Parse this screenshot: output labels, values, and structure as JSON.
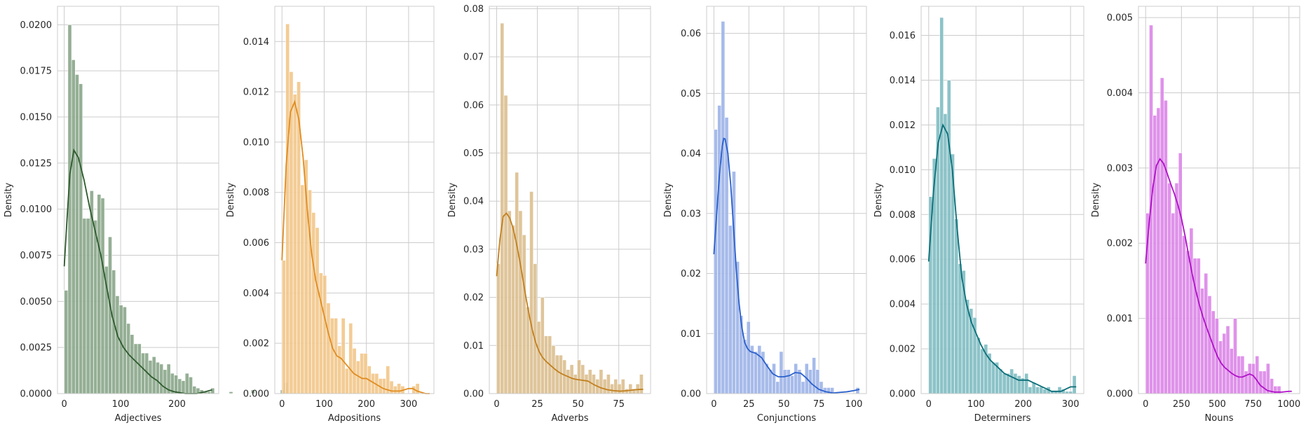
{
  "chart_data": [
    {
      "type": "histogram",
      "xlabel": "Adjectives",
      "ylabel": "Density",
      "color": "#2d5a2d",
      "fill": "#8aa68a",
      "bins": {
        "start": 0,
        "width": 6.5
      },
      "values": [
        0.0056,
        0.02,
        0.0181,
        0.0173,
        0.0168,
        0.0095,
        0.0095,
        0.011,
        0.0094,
        0.0108,
        0.0106,
        0.0069,
        0.0085,
        0.0067,
        0.0053,
        0.0048,
        0.0047,
        0.0038,
        0.0032,
        0.0027,
        0.0027,
        0.0022,
        0.0022,
        0.0018,
        0.002,
        0.0017,
        0.0016,
        0.0013,
        0.0016,
        0.0011,
        0.001,
        0.0008,
        0.0007,
        0.0011,
        0.0009,
        0.0004,
        0.0003,
        0.0002,
        0.0001,
        0.0001,
        0.0003,
        0.0,
        0.0,
        0.0,
        0.0,
        0.0001,
        0.0,
        0.0,
        0.0,
        0.0,
        0.0,
        0.0002,
        0.0,
        0.0,
        0.0,
        0.0,
        0.0,
        0.0,
        0.0,
        0.0002,
        0.0006
      ],
      "kde": [
        [
          0,
          0.0069
        ],
        [
          5,
          0.0095
        ],
        [
          10,
          0.0119
        ],
        [
          17,
          0.0132
        ],
        [
          25,
          0.0128
        ],
        [
          35,
          0.0116
        ],
        [
          45,
          0.0101
        ],
        [
          55,
          0.0088
        ],
        [
          65,
          0.0075
        ],
        [
          75,
          0.0058
        ],
        [
          85,
          0.0042
        ],
        [
          95,
          0.0031
        ],
        [
          105,
          0.0025
        ],
        [
          115,
          0.0021
        ],
        [
          125,
          0.0018
        ],
        [
          135,
          0.0015
        ],
        [
          145,
          0.0012
        ],
        [
          155,
          0.0009
        ],
        [
          165,
          0.0007
        ],
        [
          175,
          0.0004
        ],
        [
          185,
          0.0002
        ],
        [
          195,
          0.0001
        ],
        [
          215,
          0.0
        ],
        [
          235,
          0.0
        ],
        [
          250,
          0.0001
        ],
        [
          262,
          0.0002
        ]
      ],
      "xlim": [
        -12,
        274
      ],
      "ylim": [
        0,
        0.021
      ],
      "xticks": [
        0,
        100,
        200
      ],
      "yticks": [
        0.0,
        0.0025,
        0.005,
        0.0075,
        0.01,
        0.0125,
        0.015,
        0.0175,
        0.02
      ],
      "ytick_labels": [
        "0.0000",
        "0.0025",
        "0.0050",
        "0.0075",
        "0.0100",
        "0.0125",
        "0.0150",
        "0.0175",
        "0.0200"
      ],
      "grid": true
    },
    {
      "type": "histogram",
      "xlabel": "Adpositions",
      "ylabel": "Density",
      "color": "#e08c20",
      "fill": "#f2c68a",
      "bins": {
        "start": 0,
        "width": 8.8
      },
      "values": [
        0.0053,
        0.0147,
        0.0128,
        0.0119,
        0.0124,
        0.0083,
        0.0093,
        0.0081,
        0.0072,
        0.0066,
        0.0048,
        0.0047,
        0.0036,
        0.003,
        0.003,
        0.0019,
        0.003,
        0.001,
        0.0028,
        0.0018,
        0.0013,
        0.0016,
        0.0016,
        0.0011,
        0.0008,
        0.0008,
        0.0006,
        0.0006,
        0.0011,
        0.0005,
        0.0003,
        0.0004,
        0.0003,
        0.0,
        0.0,
        0.0003,
        0.0004,
        0.0,
        0.0,
        0.0
      ],
      "kde": [
        [
          0,
          0.0053
        ],
        [
          10,
          0.0091
        ],
        [
          20,
          0.0112
        ],
        [
          30,
          0.0116
        ],
        [
          40,
          0.0109
        ],
        [
          50,
          0.0094
        ],
        [
          60,
          0.0073
        ],
        [
          70,
          0.0056
        ],
        [
          80,
          0.0045
        ],
        [
          90,
          0.0038
        ],
        [
          100,
          0.0031
        ],
        [
          110,
          0.0024
        ],
        [
          120,
          0.0018
        ],
        [
          130,
          0.0015
        ],
        [
          140,
          0.0014
        ],
        [
          150,
          0.0012
        ],
        [
          160,
          0.001
        ],
        [
          170,
          0.0008
        ],
        [
          180,
          0.0007
        ],
        [
          190,
          0.0006
        ],
        [
          200,
          0.0006
        ],
        [
          210,
          0.0005
        ],
        [
          220,
          0.0004
        ],
        [
          230,
          0.0003
        ],
        [
          240,
          0.0002
        ],
        [
          260,
          0.0001
        ],
        [
          280,
          0.0001
        ],
        [
          300,
          0.0002
        ],
        [
          310,
          0.0002
        ],
        [
          320,
          0.0001
        ],
        [
          340,
          0.0
        ],
        [
          350,
          0.0
        ]
      ],
      "xlim": [
        -17,
        360
      ],
      "ylim": [
        0,
        0.0154
      ],
      "xticks": [
        0,
        100,
        200,
        300
      ],
      "yticks": [
        0.0,
        0.002,
        0.004,
        0.006,
        0.008,
        0.01,
        0.012,
        0.014
      ],
      "ytick_labels": [
        "0.000",
        "0.002",
        "0.004",
        "0.006",
        "0.008",
        "0.010",
        "0.012",
        "0.014"
      ],
      "grid": true
    },
    {
      "type": "histogram",
      "xlabel": "Adverbs",
      "ylabel": "Density",
      "color": "#c27f1e",
      "fill": "#dcbf8f",
      "bins": {
        "start": 0,
        "width": 2.25
      },
      "values": [
        0.027,
        0.077,
        0.062,
        0.038,
        0.035,
        0.046,
        0.038,
        0.033,
        0.018,
        0.042,
        0.027,
        0.015,
        0.02,
        0.012,
        0.012,
        0.01,
        0.008,
        0.008,
        0.007,
        0.005,
        0.006,
        0.004,
        0.007,
        0.006,
        0.004,
        0.005,
        0.004,
        0.003,
        0.005,
        0.003,
        0.004,
        0.002,
        0.003,
        0.002,
        0.003,
        0.001,
        0.002,
        0.001,
        0.002,
        0.004
      ],
      "kde": [
        [
          0,
          0.0244
        ],
        [
          2,
          0.032
        ],
        [
          4,
          0.0368
        ],
        [
          6,
          0.0375
        ],
        [
          8,
          0.0365
        ],
        [
          10,
          0.0345
        ],
        [
          12,
          0.0315
        ],
        [
          14,
          0.028
        ],
        [
          16,
          0.024
        ],
        [
          18,
          0.02
        ],
        [
          20,
          0.0163
        ],
        [
          22,
          0.0131
        ],
        [
          24,
          0.0106
        ],
        [
          26,
          0.0088
        ],
        [
          28,
          0.0076
        ],
        [
          30,
          0.0068
        ],
        [
          32,
          0.0062
        ],
        [
          34,
          0.0056
        ],
        [
          36,
          0.005
        ],
        [
          38,
          0.0045
        ],
        [
          40,
          0.0041
        ],
        [
          42,
          0.0038
        ],
        [
          44,
          0.0035
        ],
        [
          46,
          0.0032
        ],
        [
          48,
          0.003
        ],
        [
          50,
          0.0029
        ],
        [
          52,
          0.0028
        ],
        [
          54,
          0.0027
        ],
        [
          56,
          0.0026
        ],
        [
          58,
          0.0022
        ],
        [
          60,
          0.0018
        ],
        [
          64,
          0.0012
        ],
        [
          68,
          0.0008
        ],
        [
          72,
          0.0006
        ],
        [
          76,
          0.0005
        ],
        [
          80,
          0.0006
        ],
        [
          85,
          0.0008
        ],
        [
          90,
          0.0009
        ]
      ],
      "xlim": [
        -4.5,
        94.5
      ],
      "ylim": [
        0,
        0.0805
      ],
      "xticks": [
        0,
        25,
        50,
        75
      ],
      "yticks": [
        0.0,
        0.01,
        0.02,
        0.03,
        0.04,
        0.05,
        0.06,
        0.07,
        0.08
      ],
      "ytick_labels": [
        "0.00",
        "0.01",
        "0.02",
        "0.03",
        "0.04",
        "0.05",
        "0.06",
        "0.07",
        "0.08"
      ],
      "grid": true
    },
    {
      "type": "histogram",
      "xlabel": "Conjunctions",
      "ylabel": "Density",
      "color": "#2a60cc",
      "fill": "#9db4e8",
      "bins": {
        "start": 0,
        "width": 2.6
      },
      "values": [
        0.044,
        0.048,
        0.062,
        0.046,
        0.028,
        0.037,
        0.022,
        0.013,
        0.009,
        0.012,
        0.008,
        0.007,
        0.008,
        0.007,
        0.005,
        0.004,
        0.005,
        0.002,
        0.007,
        0.004,
        0.004,
        0.003,
        0.005,
        0.004,
        0.002,
        0.005,
        0.004,
        0.006,
        0.004,
        0.002,
        0.001,
        0.001,
        0.001,
        0.0,
        0.0,
        0.0,
        0.0,
        0.0,
        0.0,
        0.001
      ],
      "kde": [
        [
          0,
          0.0232
        ],
        [
          2,
          0.03
        ],
        [
          4,
          0.0365
        ],
        [
          6,
          0.0413
        ],
        [
          7,
          0.0425
        ],
        [
          8,
          0.0424
        ],
        [
          10,
          0.04
        ],
        [
          12,
          0.0348
        ],
        [
          14,
          0.0278
        ],
        [
          16,
          0.0206
        ],
        [
          18,
          0.015
        ],
        [
          20,
          0.011
        ],
        [
          22,
          0.0085
        ],
        [
          24,
          0.0075
        ],
        [
          26,
          0.007
        ],
        [
          30,
          0.0067
        ],
        [
          34,
          0.006
        ],
        [
          38,
          0.0046
        ],
        [
          42,
          0.0033
        ],
        [
          46,
          0.0028
        ],
        [
          50,
          0.0028
        ],
        [
          54,
          0.003
        ],
        [
          58,
          0.0035
        ],
        [
          62,
          0.0034
        ],
        [
          66,
          0.0026
        ],
        [
          70,
          0.0016
        ],
        [
          75,
          0.0007
        ],
        [
          80,
          0.0003
        ],
        [
          85,
          0.0001
        ],
        [
          90,
          0.0002
        ],
        [
          95,
          0.0003
        ],
        [
          100,
          0.0005
        ],
        [
          104,
          0.0007
        ]
      ],
      "xlim": [
        -5.2,
        109
      ],
      "ylim": [
        0,
        0.0645
      ],
      "xticks": [
        0,
        25,
        50,
        75,
        100
      ],
      "yticks": [
        0.0,
        0.01,
        0.02,
        0.03,
        0.04,
        0.05,
        0.06
      ],
      "ytick_labels": [
        "0.00",
        "0.01",
        "0.02",
        "0.03",
        "0.04",
        "0.05",
        "0.06"
      ],
      "grid": true
    },
    {
      "type": "histogram",
      "xlabel": "Determiners",
      "ylabel": "Density",
      "color": "#0a6e78",
      "fill": "#7fbcc2",
      "bins": {
        "start": 0,
        "width": 7.8
      },
      "values": [
        0.0088,
        0.0105,
        0.0128,
        0.0168,
        0.0125,
        0.014,
        0.0107,
        0.0078,
        0.0058,
        0.0055,
        0.0042,
        0.0038,
        0.0034,
        0.0025,
        0.002,
        0.0022,
        0.0018,
        0.0014,
        0.0014,
        0.0011,
        0.0009,
        0.0009,
        0.0011,
        0.0009,
        0.0008,
        0.0007,
        0.0009,
        0.0003,
        0.0005,
        0.0003,
        0.0003,
        0.0002,
        0.0003,
        0.0001,
        0.0001,
        0.0003,
        0.0002,
        0.0001,
        0.0001,
        0.0008
      ],
      "kde": [
        [
          0,
          0.0059
        ],
        [
          10,
          0.009
        ],
        [
          20,
          0.0112
        ],
        [
          30,
          0.012
        ],
        [
          40,
          0.0116
        ],
        [
          50,
          0.01
        ],
        [
          60,
          0.0074
        ],
        [
          70,
          0.0052
        ],
        [
          80,
          0.004
        ],
        [
          90,
          0.0032
        ],
        [
          100,
          0.0027
        ],
        [
          110,
          0.0022
        ],
        [
          120,
          0.0018
        ],
        [
          130,
          0.0015
        ],
        [
          140,
          0.0013
        ],
        [
          150,
          0.0011
        ],
        [
          160,
          0.0009
        ],
        [
          170,
          0.0008
        ],
        [
          180,
          0.0007
        ],
        [
          190,
          0.0006
        ],
        [
          200,
          0.0006
        ],
        [
          210,
          0.0006
        ],
        [
          220,
          0.0005
        ],
        [
          230,
          0.0004
        ],
        [
          240,
          0.0003
        ],
        [
          250,
          0.0002
        ],
        [
          260,
          0.0001
        ],
        [
          270,
          0.0001
        ],
        [
          280,
          0.0001
        ],
        [
          290,
          0.0002
        ],
        [
          300,
          0.0003
        ],
        [
          312,
          0.0003
        ]
      ],
      "xlim": [
        -16,
        328
      ],
      "ylim": [
        0,
        0.0173
      ],
      "xticks": [
        0,
        100,
        200,
        300
      ],
      "yticks": [
        0.0,
        0.002,
        0.004,
        0.006,
        0.008,
        0.01,
        0.012,
        0.014,
        0.016
      ],
      "ytick_labels": [
        "0.000",
        "0.002",
        "0.004",
        "0.006",
        "0.008",
        "0.010",
        "0.012",
        "0.014",
        "0.016"
      ],
      "grid": true
    },
    {
      "type": "histogram",
      "xlabel": "Nouns",
      "ylabel": "Density",
      "color": "#b010c8",
      "fill": "#dc86e8",
      "bins": {
        "start": 0,
        "width": 25.5
      },
      "values": [
        0.0024,
        0.0049,
        0.0037,
        0.0038,
        0.0042,
        0.0039,
        0.0028,
        0.0024,
        0.0028,
        0.0032,
        0.0021,
        0.0019,
        0.0022,
        0.0018,
        0.0018,
        0.0014,
        0.0016,
        0.0013,
        0.0011,
        0.001,
        0.0007,
        0.0008,
        0.0009,
        0.0006,
        0.001,
        0.0005,
        0.0005,
        0.0003,
        0.0004,
        0.0004,
        0.0005,
        0.0003,
        0.0003,
        0.0004,
        0.0002,
        0.0001,
        0.0001,
        0.0,
        0.0,
        0.0
      ],
      "kde": [
        [
          0,
          0.00173
        ],
        [
          25,
          0.00228
        ],
        [
          50,
          0.00273
        ],
        [
          75,
          0.00303
        ],
        [
          100,
          0.00312
        ],
        [
          125,
          0.00306
        ],
        [
          150,
          0.00293
        ],
        [
          175,
          0.00279
        ],
        [
          200,
          0.00266
        ],
        [
          225,
          0.00251
        ],
        [
          250,
          0.00233
        ],
        [
          275,
          0.0021
        ],
        [
          300,
          0.00184
        ],
        [
          325,
          0.00159
        ],
        [
          350,
          0.00137
        ],
        [
          375,
          0.00118
        ],
        [
          400,
          0.00102
        ],
        [
          425,
          0.00088
        ],
        [
          450,
          0.00075
        ],
        [
          475,
          0.00062
        ],
        [
          500,
          0.0005
        ],
        [
          525,
          0.00041
        ],
        [
          550,
          0.00035
        ],
        [
          575,
          0.00031
        ],
        [
          600,
          0.00027
        ],
        [
          625,
          0.00024
        ],
        [
          650,
          0.00022
        ],
        [
          675,
          0.00022
        ],
        [
          700,
          0.00024
        ],
        [
          725,
          0.00026
        ],
        [
          750,
          0.00024
        ],
        [
          775,
          0.00018
        ],
        [
          800,
          0.00011
        ],
        [
          850,
          4e-05
        ],
        [
          900,
          2e-05
        ],
        [
          950,
          2e-05
        ],
        [
          1000,
          3e-05
        ],
        [
          1020,
          3e-05
        ]
      ],
      "xlim": [
        -50,
        1075
      ],
      "ylim": [
        0,
        0.00515
      ],
      "xticks": [
        0,
        250,
        500,
        750,
        1000
      ],
      "yticks": [
        0.0,
        0.001,
        0.002,
        0.003,
        0.004,
        0.005
      ],
      "ytick_labels": [
        "0.000",
        "0.001",
        "0.002",
        "0.003",
        "0.004",
        "0.005"
      ],
      "grid": true
    }
  ]
}
